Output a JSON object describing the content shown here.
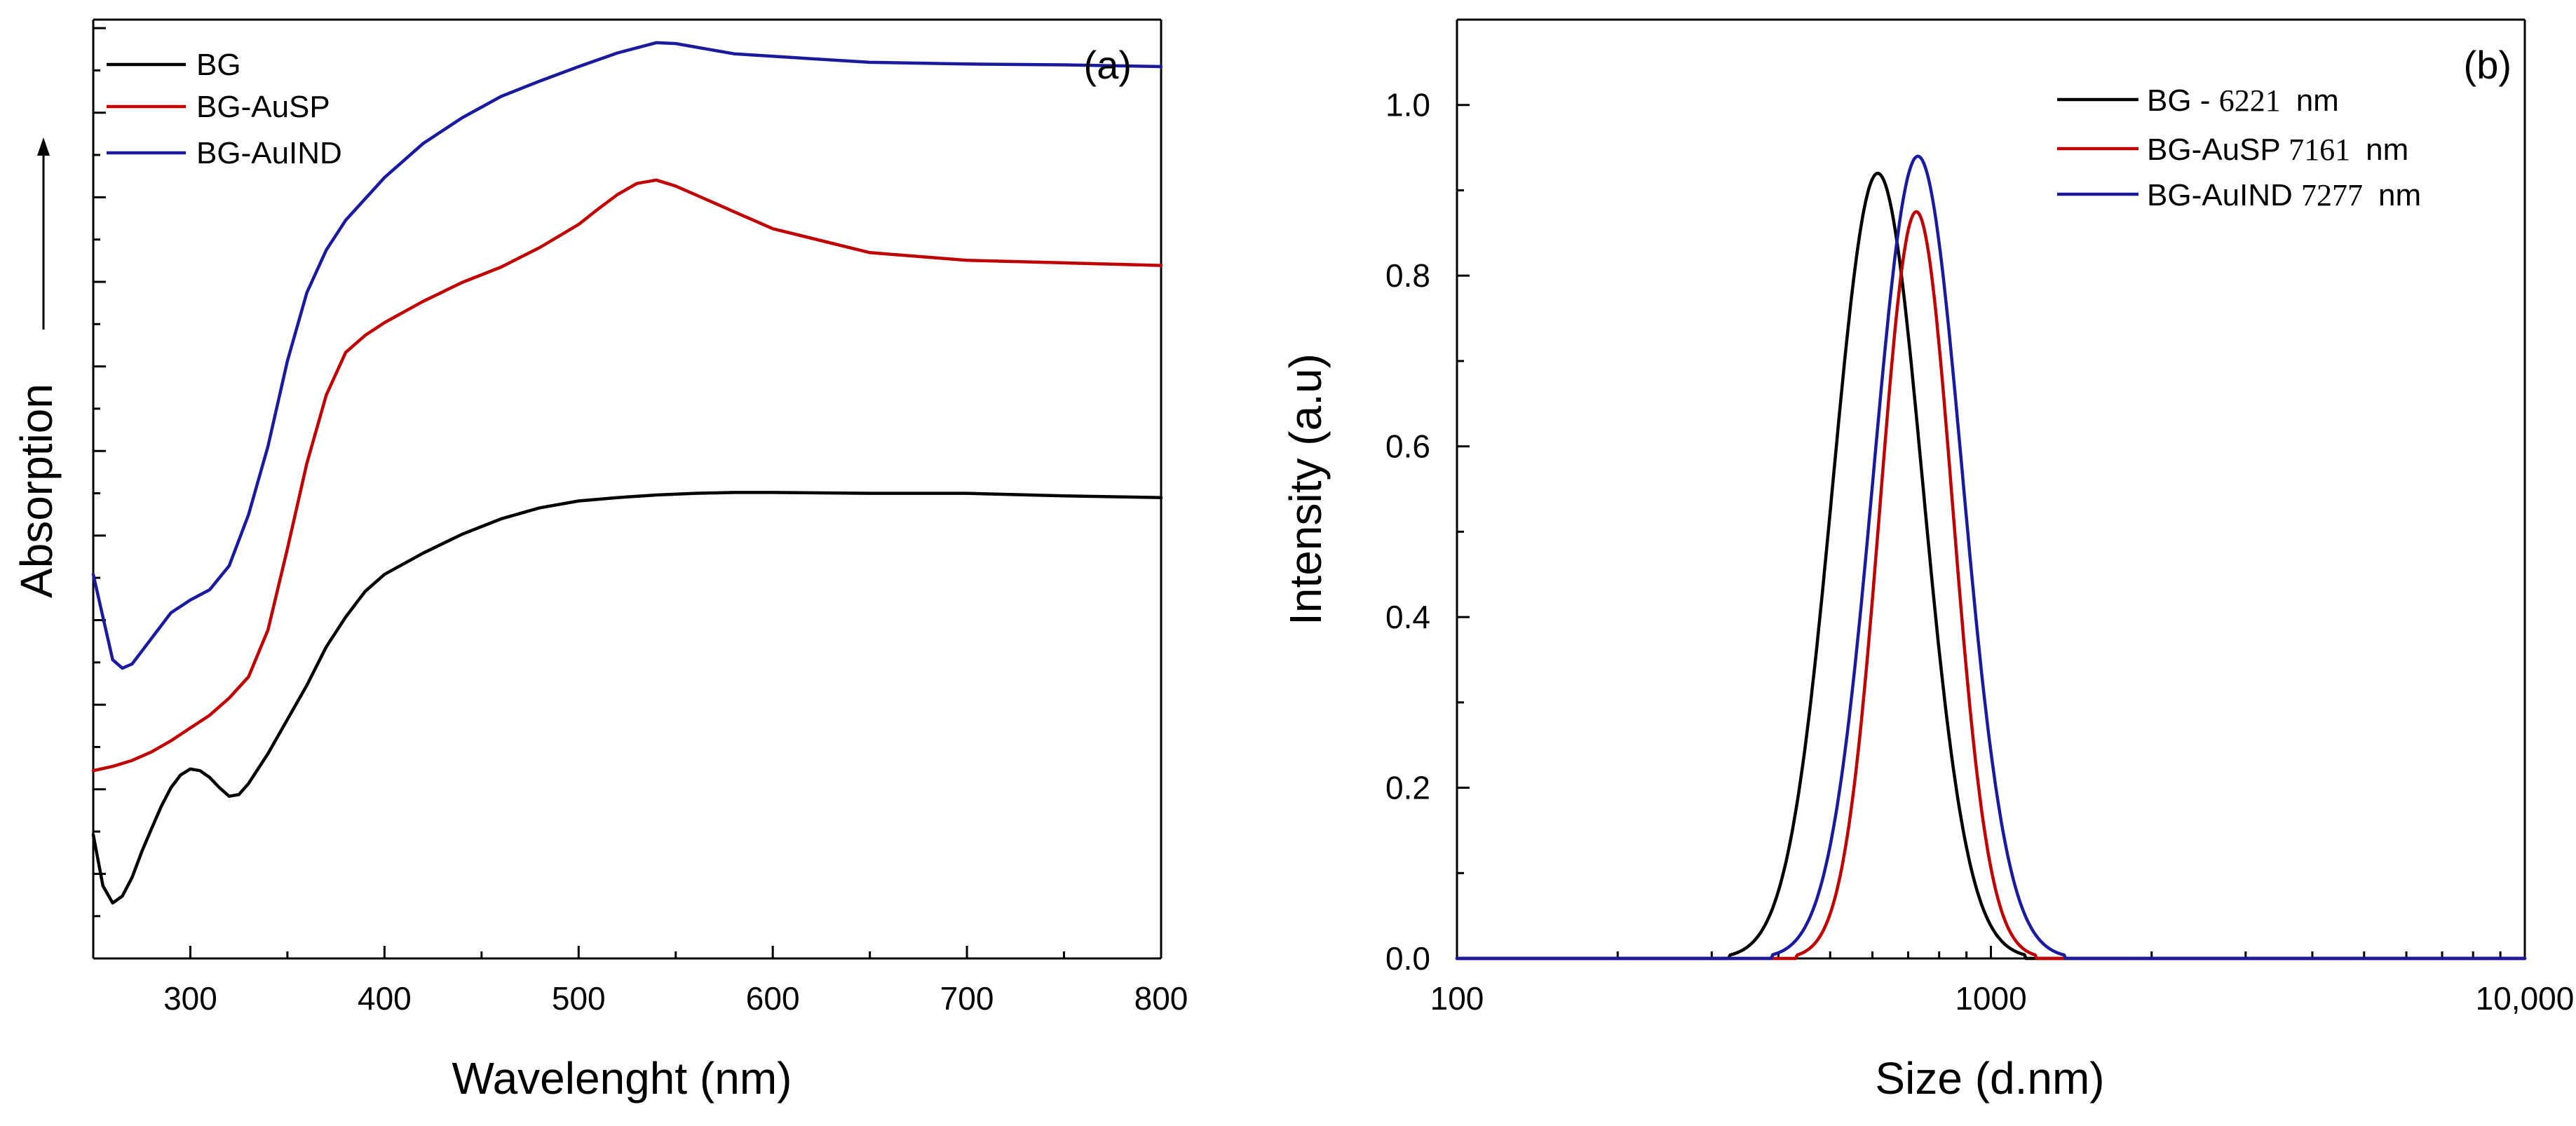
{
  "chart_data": [
    {
      "panel": "(a)",
      "type": "line",
      "xlabel": "Wavelenght (nm)",
      "ylabel": "Absorption",
      "xlim": [
        250,
        800
      ],
      "x_ticks": [
        "300",
        "400",
        "500",
        "600",
        "700",
        "800"
      ],
      "y_tick_labels": "none (arbitrary units, stacked curves)",
      "ylim": [
        0,
        1.1
      ],
      "grid": false,
      "legend_position": "top-left",
      "series": [
        {
          "name": "BG",
          "color": "#000000",
          "x": [
            250,
            255,
            260,
            265,
            270,
            275,
            280,
            285,
            290,
            295,
            300,
            305,
            310,
            315,
            320,
            325,
            330,
            340,
            350,
            360,
            370,
            380,
            390,
            400,
            420,
            440,
            460,
            480,
            500,
            520,
            540,
            560,
            580,
            600,
            650,
            700,
            750,
            800
          ],
          "values": [
            0.145,
            0.085,
            0.065,
            0.073,
            0.095,
            0.125,
            0.152,
            0.178,
            0.2,
            0.215,
            0.222,
            0.22,
            0.212,
            0.2,
            0.19,
            0.192,
            0.205,
            0.24,
            0.28,
            0.32,
            0.365,
            0.4,
            0.43,
            0.45,
            0.475,
            0.497,
            0.515,
            0.528,
            0.536,
            0.54,
            0.543,
            0.545,
            0.546,
            0.546,
            0.545,
            0.545,
            0.542,
            0.54
          ]
        },
        {
          "name": "BG-AuSP",
          "color": "#c00000",
          "x": [
            250,
            260,
            270,
            280,
            290,
            300,
            310,
            320,
            330,
            340,
            350,
            360,
            370,
            380,
            390,
            400,
            420,
            440,
            460,
            480,
            500,
            510,
            520,
            530,
            540,
            550,
            560,
            580,
            600,
            650,
            700,
            750,
            800
          ],
          "values": [
            0.22,
            0.225,
            0.232,
            0.242,
            0.255,
            0.27,
            0.285,
            0.305,
            0.33,
            0.385,
            0.48,
            0.58,
            0.66,
            0.71,
            0.73,
            0.745,
            0.77,
            0.792,
            0.81,
            0.833,
            0.86,
            0.878,
            0.895,
            0.908,
            0.912,
            0.905,
            0.895,
            0.875,
            0.855,
            0.827,
            0.818,
            0.815,
            0.812
          ]
        },
        {
          "name": "BG-AuIND",
          "color": "#1a1a9e",
          "x": [
            250,
            255,
            260,
            265,
            270,
            275,
            280,
            290,
            300,
            310,
            320,
            330,
            340,
            350,
            360,
            370,
            380,
            400,
            420,
            440,
            460,
            480,
            500,
            520,
            540,
            550,
            560,
            580,
            600,
            650,
            700,
            750,
            800
          ],
          "values": [
            0.45,
            0.4,
            0.35,
            0.34,
            0.345,
            0.36,
            0.375,
            0.405,
            0.42,
            0.432,
            0.46,
            0.52,
            0.6,
            0.7,
            0.78,
            0.83,
            0.865,
            0.915,
            0.955,
            0.985,
            1.01,
            1.028,
            1.045,
            1.061,
            1.073,
            1.072,
            1.068,
            1.06,
            1.057,
            1.05,
            1.048,
            1.047,
            1.045
          ]
        }
      ]
    },
    {
      "panel": "(b)",
      "type": "line",
      "xscale": "log",
      "xlabel": "Size (d.nm)",
      "ylabel": "Intensity (a.u)",
      "xlim": [
        100,
        10000
      ],
      "ylim": [
        0,
        1.1
      ],
      "x_ticks": [
        {
          "value": 100,
          "label": "100"
        },
        {
          "value": 1000,
          "label": "1000"
        },
        {
          "value": 10000,
          "label": "10,000"
        }
      ],
      "y_ticks": [
        "0.0",
        "0.2",
        "0.4",
        "0.6",
        "0.8",
        "1.0"
      ],
      "grid": false,
      "legend_position": "top-right",
      "series": [
        {
          "name": "BG - ",
          "size_value": "6221",
          "unit": "nm",
          "color": "#000000",
          "peak_x": 614,
          "peak_y": 0.92,
          "log_sigma": 0.084
        },
        {
          "name": "BG-AuSP ",
          "size_value": "7161",
          "unit": "nm",
          "color": "#c00000",
          "peak_x": 725,
          "peak_y": 0.875,
          "log_sigma": 0.068
        },
        {
          "name": "BG-AuIND ",
          "size_value": "7277",
          "unit": "nm",
          "color": "#1a1a9e",
          "peak_x": 730,
          "peak_y": 0.94,
          "log_sigma": 0.083
        }
      ]
    }
  ]
}
